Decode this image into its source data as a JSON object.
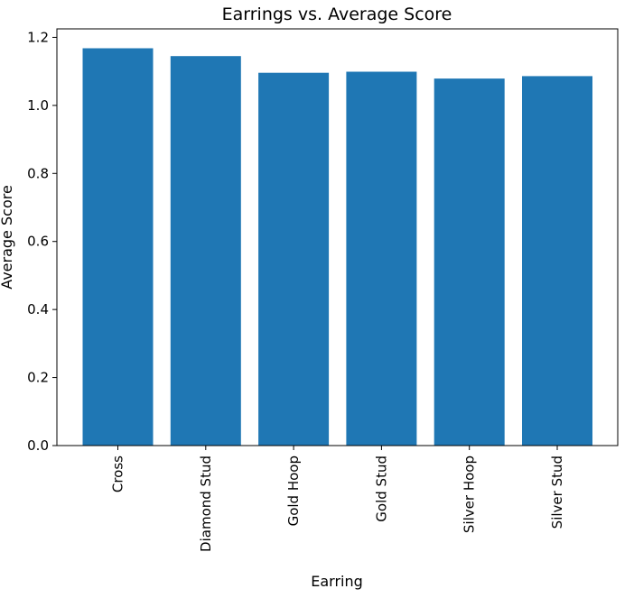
{
  "chart_data": {
    "type": "bar",
    "title": "Earrings vs. Average Score",
    "xlabel": "Earring",
    "ylabel": "Average Score",
    "categories": [
      "Cross",
      "Diamond Stud",
      "Gold Hoop",
      "Gold Stud",
      "Silver Hoop",
      "Silver Stud"
    ],
    "values": [
      1.168,
      1.145,
      1.096,
      1.099,
      1.079,
      1.086
    ],
    "ylim": [
      0,
      1.225
    ],
    "yticks": [
      0.0,
      0.2,
      0.4,
      0.6,
      0.8,
      1.0,
      1.2
    ],
    "bar_color": "#1f77b4",
    "grid": false,
    "legend": "none"
  }
}
